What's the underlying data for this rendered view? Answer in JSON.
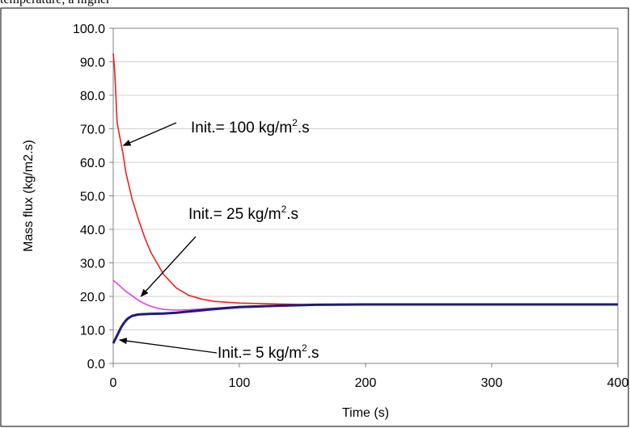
{
  "page": {
    "cropped_text": "temperature, a higher"
  },
  "chart_data": {
    "type": "line",
    "title": "",
    "xlabel": "Time (s)",
    "ylabel": "Mass flux (kg/m2.s)",
    "xlim": [
      0,
      400
    ],
    "ylim": [
      0,
      100
    ],
    "x_ticks": [
      "0",
      "100",
      "200",
      "300",
      "400"
    ],
    "y_ticks": [
      "0.0",
      "10.0",
      "20.0",
      "30.0",
      "40.0",
      "50.0",
      "60.0",
      "70.0",
      "80.0",
      "90.0",
      "100.0"
    ],
    "grid": "horizontal",
    "legend": "none",
    "series": [
      {
        "color": "#e8231c",
        "x": [
          0,
          1,
          2,
          3,
          5,
          8,
          10,
          15,
          20,
          25,
          30,
          40,
          50,
          60,
          70,
          80,
          100,
          120,
          150,
          200,
          300,
          400
        ],
        "y": [
          92.5,
          88,
          81,
          72,
          68,
          62,
          57,
          49,
          43,
          37.5,
          33,
          26.5,
          22.5,
          20.3,
          19.2,
          18.5,
          18,
          17.8,
          17.6,
          17.6,
          17.6,
          17.6
        ]
      },
      {
        "color": "#e83ee8",
        "x": [
          0,
          2,
          5,
          10,
          15,
          20,
          25,
          30,
          35,
          40,
          50,
          60,
          80,
          100,
          130,
          160,
          200,
          300,
          400
        ],
        "y": [
          24.8,
          24.2,
          23.2,
          21.5,
          20.2,
          18.8,
          17.8,
          17,
          16.5,
          16.1,
          15.9,
          16,
          16.5,
          17,
          17.3,
          17.5,
          17.6,
          17.6,
          17.6
        ]
      },
      {
        "color": "#1c1c7a",
        "x": [
          0,
          2,
          4,
          6,
          8,
          10,
          12,
          15,
          20,
          25,
          30,
          40,
          50,
          60,
          80,
          100,
          130,
          160,
          200,
          300,
          400
        ],
        "y": [
          6,
          7.5,
          9,
          10.6,
          11.8,
          12.8,
          13.5,
          14.2,
          14.6,
          14.7,
          14.8,
          14.9,
          15.1,
          15.5,
          16.2,
          16.8,
          17.2,
          17.5,
          17.6,
          17.6,
          17.6
        ]
      }
    ],
    "annotations": [
      {
        "text": "Init.= 100 kg/m",
        "sup": "2",
        "suffix": ".s",
        "points_to": [
          8,
          65
        ]
      },
      {
        "text": "Init.= 25 kg/m",
        "sup": "2",
        "suffix": ".s",
        "points_to": [
          22,
          20
        ]
      },
      {
        "text": "Init.= 5 kg/m",
        "sup": "2",
        "suffix": ".s",
        "points_to": [
          5,
          7
        ]
      }
    ]
  }
}
